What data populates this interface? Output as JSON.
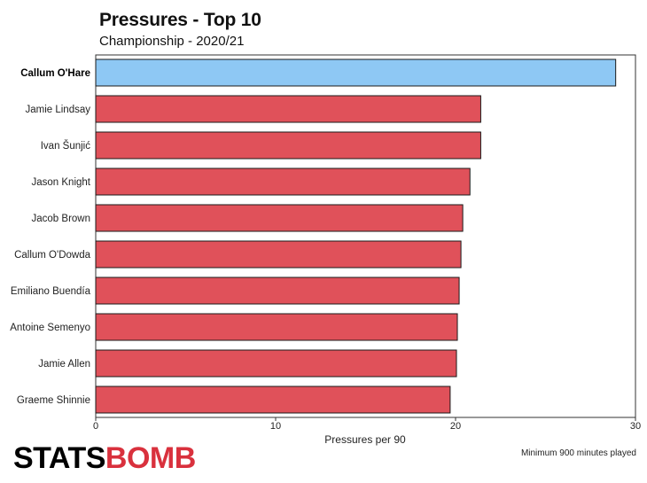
{
  "title": "Pressures - Top 10",
  "subtitle": "Championship - 2020/21",
  "footer": {
    "logo_part1": "STATS",
    "logo_part2": "BOMB",
    "note": "Minimum 900 minutes played"
  },
  "colors": {
    "highlight": "#8ec8f4",
    "bar": "#e0515a",
    "logo_accent": "#d9313d"
  },
  "chart_data": {
    "type": "bar",
    "orientation": "horizontal",
    "title": "Pressures - Top 10",
    "subtitle": "Championship - 2020/21",
    "xlabel": "Pressures per 90",
    "ylabel": "",
    "xlim": [
      0,
      30
    ],
    "xticks": [
      0,
      10,
      20,
      30
    ],
    "grid": false,
    "highlight_index": 0,
    "categories": [
      "Callum O'Hare",
      "Jamie Lindsay",
      "Ivan Šunjić",
      "Jason Knight",
      "Jacob Brown",
      "Callum O'Dowda",
      "Emiliano Buendía",
      "Antoine Semenyo",
      "Jamie Allen",
      "Graeme Shinnie"
    ],
    "values": [
      28.9,
      21.4,
      21.4,
      20.8,
      20.4,
      20.3,
      20.2,
      20.1,
      20.05,
      19.7
    ]
  }
}
